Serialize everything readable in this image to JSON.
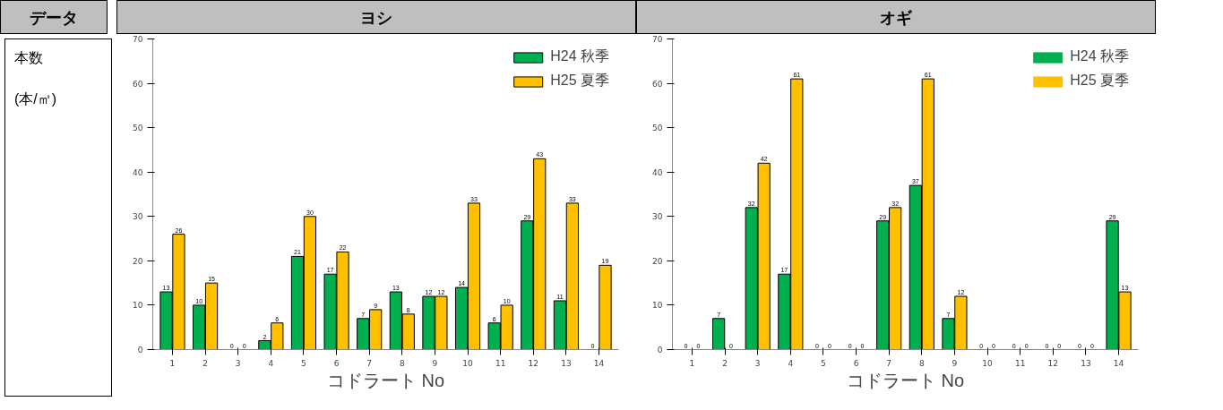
{
  "chart_data": [
    {
      "type": "bar",
      "title": "ヨシ",
      "annotations": [
        "データ",
        "本数",
        "(本/㎡)"
      ],
      "xlabel": "コドラート No",
      "categories": [
        "1",
        "2",
        "3",
        "4",
        "5",
        "6",
        "7",
        "8",
        "9",
        "10",
        "11",
        "12",
        "13",
        "14"
      ],
      "series": [
        {
          "name": "H24 秋季",
          "color": "#00b050",
          "values": [
            13,
            10,
            0,
            2,
            21,
            17,
            7,
            13,
            12,
            14,
            6,
            29,
            11,
            0
          ]
        },
        {
          "name": "H25 夏季",
          "color": "#ffc000",
          "values": [
            26,
            15,
            0,
            6,
            30,
            22,
            9,
            8,
            12,
            33,
            10,
            43,
            33,
            19
          ]
        }
      ],
      "ylim": [
        0,
        70
      ],
      "yticks": [
        0,
        10,
        20,
        30,
        40,
        50,
        60,
        70
      ],
      "data_labels": true,
      "legend": "top right",
      "grid": false
    },
    {
      "type": "bar",
      "title": "オギ",
      "xlabel": "コドラート No",
      "categories": [
        "1",
        "2",
        "3",
        "4",
        "5",
        "6",
        "7",
        "8",
        "9",
        "10",
        "11",
        "12",
        "13",
        "14"
      ],
      "series": [
        {
          "name": "H24 秋季",
          "color": "#00b050",
          "values": [
            0,
            7,
            32,
            17,
            0,
            0,
            29,
            37,
            7,
            0,
            0,
            0,
            0,
            29
          ]
        },
        {
          "name": "H25 夏季",
          "color": "#ffc000",
          "values": [
            0,
            0,
            42,
            61,
            0,
            0,
            32,
            61,
            12,
            0,
            0,
            0,
            0,
            13
          ]
        }
      ],
      "ylim": [
        0,
        70
      ],
      "yticks": [
        0,
        10,
        20,
        30,
        40,
        50,
        60,
        70
      ],
      "data_labels": true,
      "legend": "top right",
      "grid": false
    }
  ]
}
